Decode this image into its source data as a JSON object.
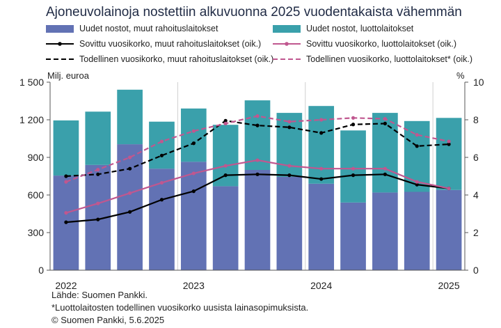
{
  "title": "Ajoneuvolainoja nostettiin alkuvuonna 2025 vuodentakaista vähemmän",
  "legend": {
    "bar1": "Uudet nostot, muut rahoituslaitokset",
    "bar2": "Uudet nostot, luottolaitokset",
    "line1": "Sovittu vuosikorko, muut rahoituslaitokset (oik.)",
    "line2": "Sovittu vuosikorko, luottolaitokset (oik.)",
    "line3": "Todellinen vuosikorko, muut rahoituslaitokset (oik.)",
    "line4": "Todellinen vuosikorko, luottolaitokset* (oik.)"
  },
  "axis": {
    "left_unit": "Milj. euroa",
    "right_unit": "%"
  },
  "footer": {
    "source": "Lähde: Suomen Pankki.",
    "note": "*Luottolaitosten todellinen vuosikorko uusista lainasopimuksista.",
    "copyright": "© Suomen Pankki, 5.6.2025"
  },
  "colors": {
    "bar_other": "#6272b4",
    "bar_credit": "#3aa0ab",
    "line_other": "#000000",
    "line_credit": "#c0578f"
  },
  "chart_data": {
    "type": "bar",
    "stacked": true,
    "x_tick_labels": [
      "2022",
      "2023",
      "2024",
      "2025"
    ],
    "x_tick_positions": [
      0.5,
      4.5,
      8.5,
      12.5
    ],
    "left_ylim": [
      0,
      1500
    ],
    "left_yticks": [
      0,
      300,
      600,
      900,
      1200,
      1500
    ],
    "left_ytick_labels": [
      "0",
      "300",
      "600",
      "900",
      "1 200",
      "1 500"
    ],
    "right_ylim": [
      0,
      10
    ],
    "right_yticks": [
      0,
      2,
      4,
      6,
      8,
      10
    ],
    "right_ytick_labels": [
      "0",
      "2",
      "4",
      "6",
      "8",
      "10"
    ],
    "grid": "vertical lines at year boundaries",
    "bar_series": [
      {
        "name": "Uudet nostot, muut rahoituslaitokset",
        "values": [
          755,
          840,
          1005,
          810,
          865,
          670,
          800,
          745,
          690,
          540,
          620,
          625,
          640
        ]
      },
      {
        "name": "Uudet nostot, luottolaitokset",
        "values": [
          440,
          425,
          435,
          375,
          425,
          490,
          555,
          510,
          620,
          575,
          635,
          565,
          575
        ]
      }
    ],
    "line_series": [
      {
        "name": "Sovittu vuosikorko, muut rahoituslaitokset (oik.)",
        "axis": "right",
        "dashed": false,
        "values": [
          2.55,
          2.7,
          3.1,
          3.75,
          4.2,
          5.05,
          5.1,
          5.05,
          4.85,
          5.05,
          5.1,
          4.55,
          4.35
        ]
      },
      {
        "name": "Sovittu vuosikorko, luottolaitokset (oik.)",
        "axis": "right",
        "dashed": false,
        "values": [
          3.05,
          3.55,
          4.1,
          4.65,
          5.15,
          5.55,
          5.85,
          5.55,
          5.4,
          5.4,
          5.4,
          4.7,
          4.35
        ]
      },
      {
        "name": "Todellinen vuosikorko, muut rahoituslaitokset (oik.)",
        "axis": "right",
        "dashed": true,
        "values": [
          5.0,
          5.1,
          5.4,
          6.1,
          6.75,
          7.95,
          7.7,
          7.6,
          7.3,
          7.75,
          7.8,
          6.6,
          6.7
        ]
      },
      {
        "name": "Todellinen vuosikorko, luottolaitokset* (oik.)",
        "axis": "right",
        "dashed": true,
        "values": [
          4.7,
          5.35,
          6.0,
          6.85,
          7.4,
          7.8,
          8.2,
          7.9,
          8.0,
          8.1,
          8.05,
          7.2,
          6.85
        ]
      }
    ]
  }
}
